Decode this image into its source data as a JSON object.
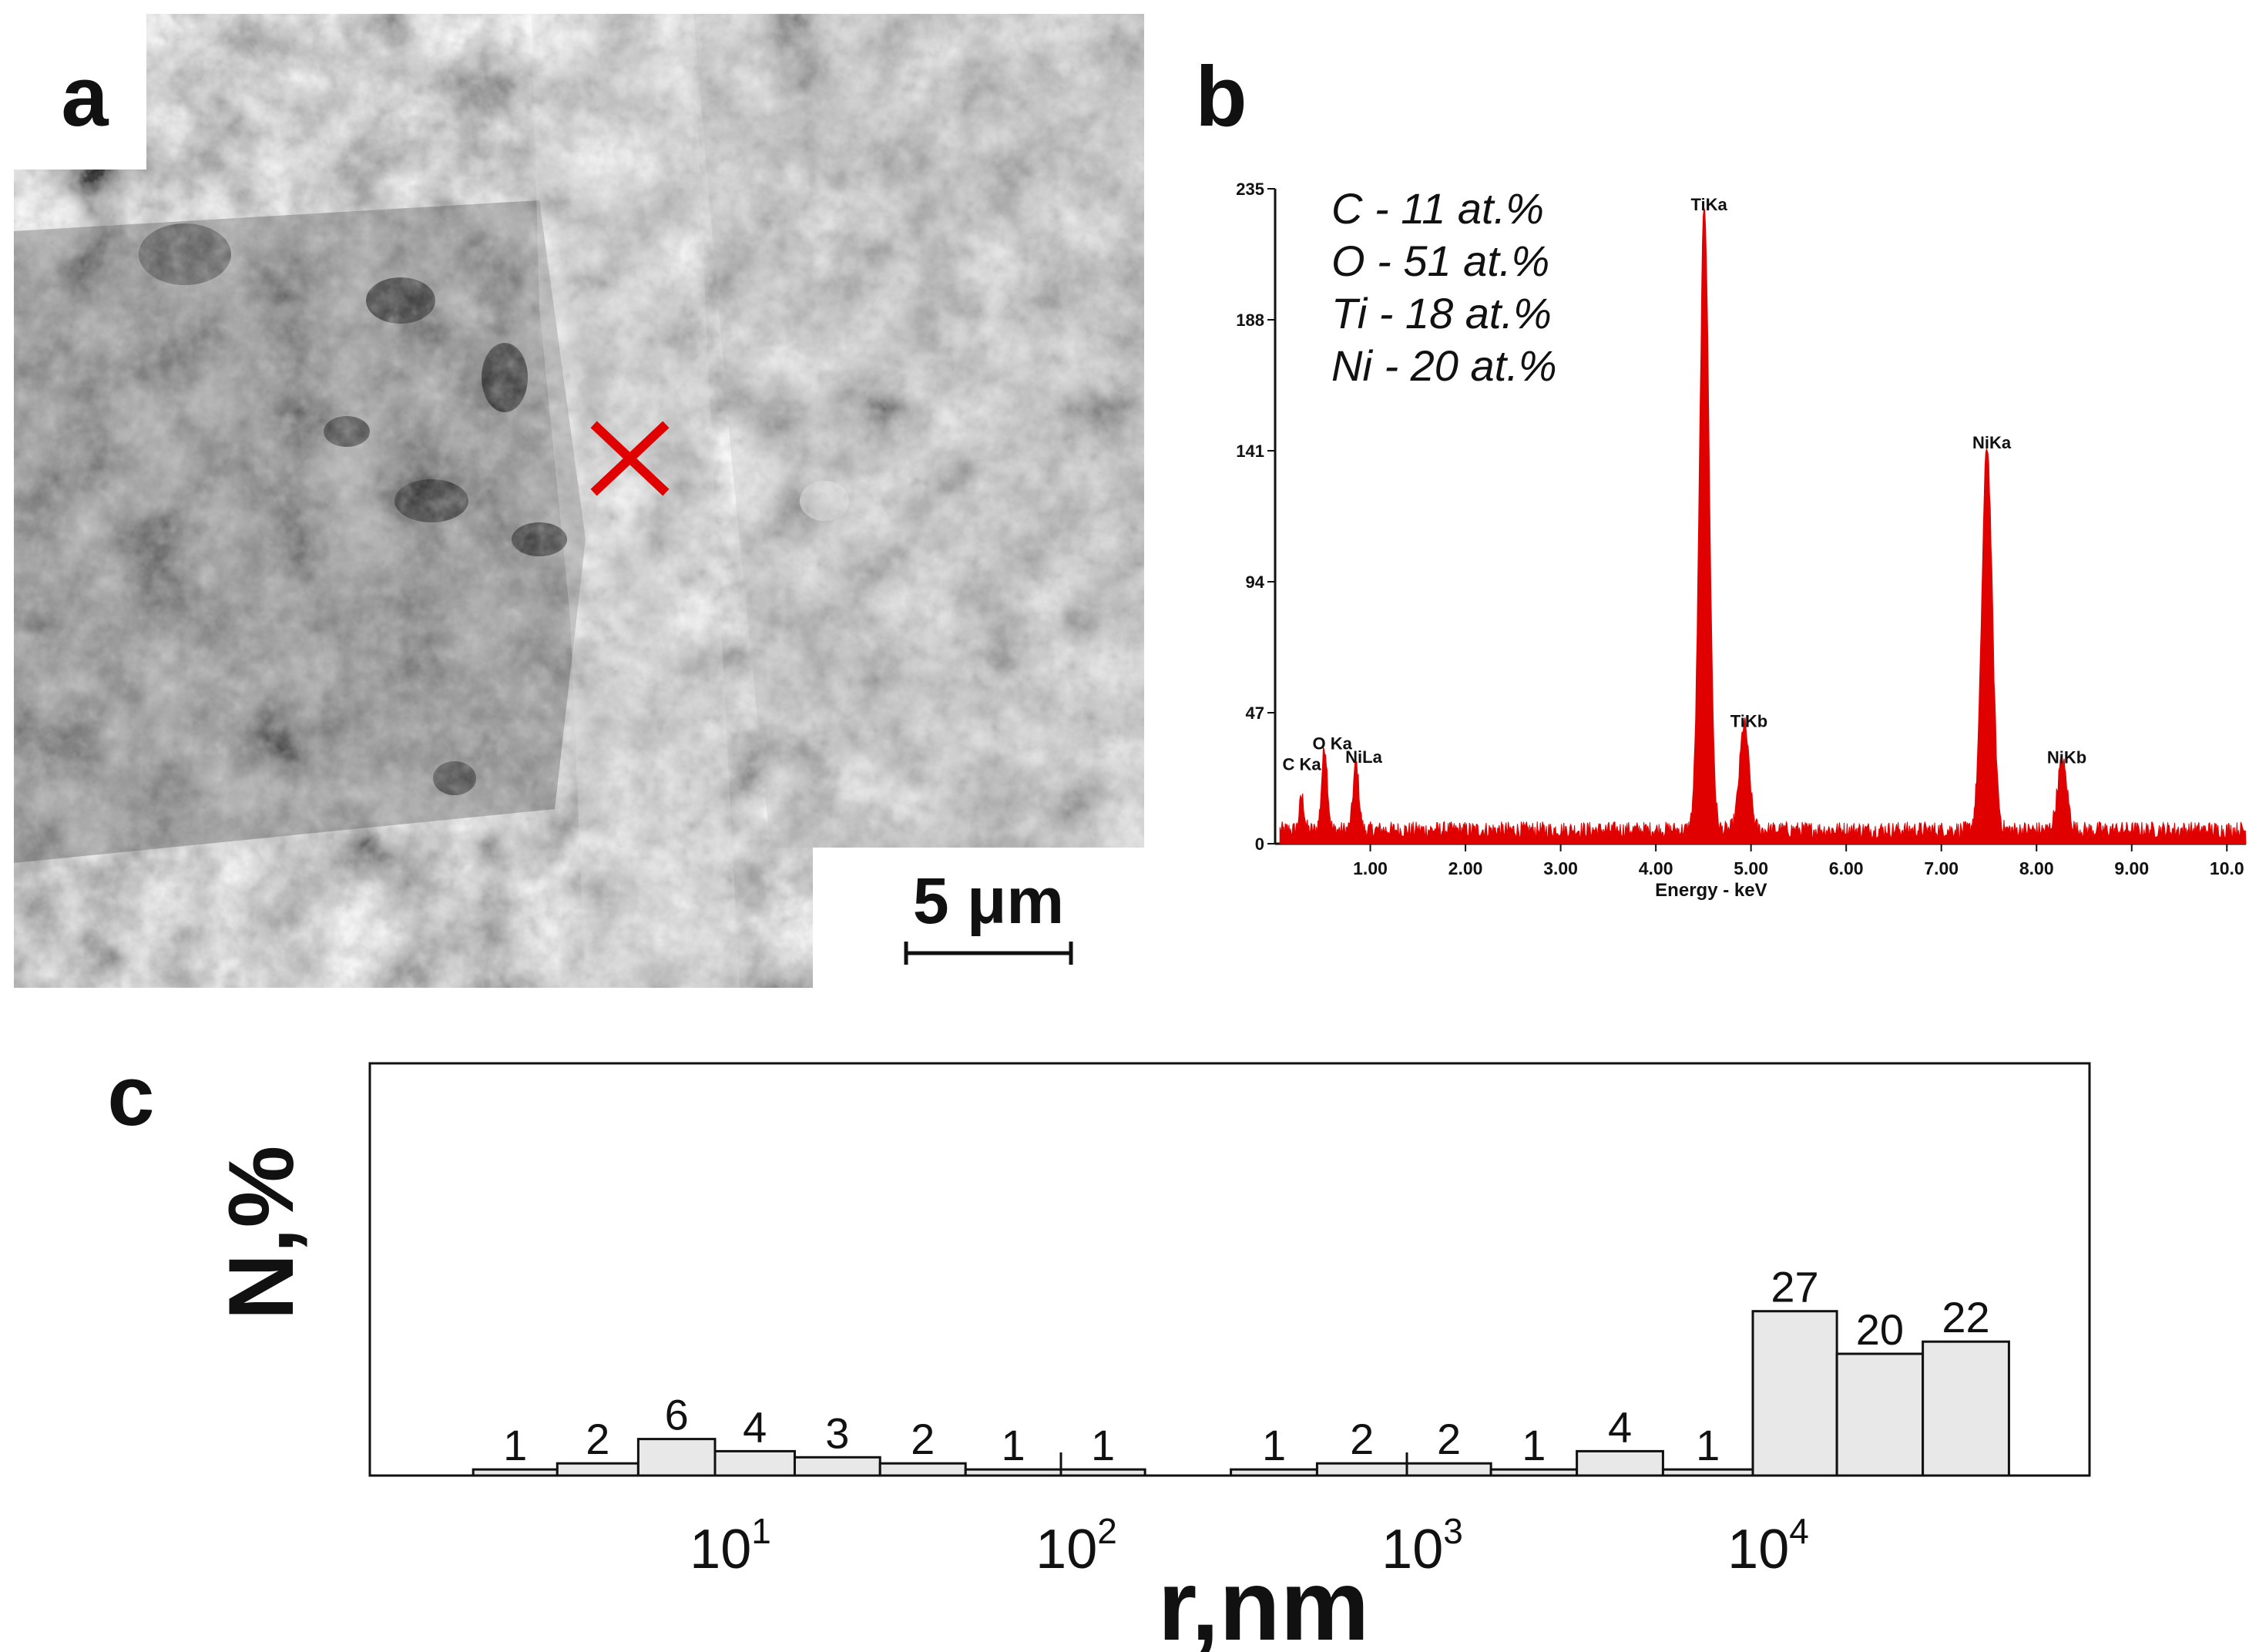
{
  "panel_a": {
    "letter": "a",
    "scale_bar_label": "5 μm"
  },
  "panel_b": {
    "letter": "b",
    "composition": [
      "C - 11 at.%",
      "O - 51 at.%",
      "Ti - 18 at.%",
      "Ni - 20 at.%"
    ]
  },
  "panel_c": {
    "letter": "c"
  },
  "colors": {
    "spectrum": "#e00000",
    "bar_fill": "#e8e8e8",
    "marker": "#e00000"
  },
  "chart_data": [
    {
      "type": "area",
      "xlabel": "Energy - keV",
      "ylabel": "",
      "xlim": [
        0,
        10.2
      ],
      "ylim": [
        0,
        235
      ],
      "y_ticks": [
        "235",
        "188",
        "141",
        "94",
        "47",
        "0"
      ],
      "x_ticks": [
        "1.00",
        "2.00",
        "3.00",
        "4.00",
        "5.00",
        "6.00",
        "7.00",
        "8.00",
        "9.00",
        "10.0"
      ],
      "peaks": [
        {
          "label": "C Ka",
          "x": 0.28,
          "y": 12
        },
        {
          "label": "O Ka",
          "x": 0.52,
          "y": 30
        },
        {
          "label": "NiLa",
          "x": 0.85,
          "y": 24
        },
        {
          "label": "TiKa",
          "x": 4.51,
          "y": 225
        },
        {
          "label": "TiKb",
          "x": 4.93,
          "y": 38
        },
        {
          "label": "NiKa",
          "x": 7.48,
          "y": 138
        },
        {
          "label": "NiKb",
          "x": 8.27,
          "y": 25
        }
      ]
    },
    {
      "type": "bar",
      "xlabel": "r,nm",
      "ylabel": "N,%",
      "x_scale": "log",
      "x_ticks": [
        "10^1",
        "10^2",
        "10^3",
        "10^4"
      ],
      "bins": [
        {
          "from": 2,
          "to": 3.5,
          "value": 1
        },
        {
          "from": 3.5,
          "to": 6,
          "value": 2
        },
        {
          "from": 6,
          "to": 10,
          "value": 6
        },
        {
          "from": 10,
          "to": 17,
          "value": 4
        },
        {
          "from": 17,
          "to": 30,
          "value": 3
        },
        {
          "from": 30,
          "to": 53,
          "value": 2
        },
        {
          "from": 53,
          "to": 100,
          "value": 1
        },
        {
          "from": 100,
          "to": 175,
          "value": 1
        },
        {
          "from": 310,
          "to": 550,
          "value": 1
        },
        {
          "from": 550,
          "to": 1000,
          "value": 2
        },
        {
          "from": 1000,
          "to": 1750,
          "value": 2
        },
        {
          "from": 1750,
          "to": 3100,
          "value": 1
        },
        {
          "from": 3100,
          "to": 5500,
          "value": 4
        },
        {
          "from": 5500,
          "to": 10000,
          "value": 1
        },
        {
          "from": 10000,
          "to": 17500,
          "value": 27
        },
        {
          "from": 17500,
          "to": 31000,
          "value": 20
        },
        {
          "from": 31000,
          "to": 55000,
          "value": 22
        }
      ]
    }
  ]
}
